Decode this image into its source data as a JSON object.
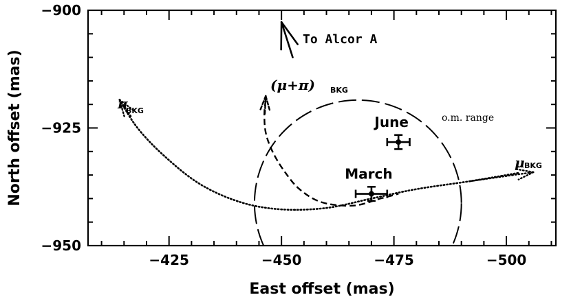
{
  "chart_data": {
    "type": "scatter",
    "xlabel": "East offset (mas)",
    "ylabel": "North offset (mas)",
    "xlim": [
      -407,
      -511
    ],
    "ylim": [
      -950,
      -900
    ],
    "x_ticks": [
      -425,
      -450,
      -475,
      -500
    ],
    "y_ticks": [
      -900,
      -925,
      -950
    ],
    "x_tick_labels": [
      "−425",
      "−450",
      "−475",
      "−500"
    ],
    "y_tick_labels": [
      "−900",
      "−925",
      "−950"
    ],
    "points": [
      {
        "label": "March",
        "x": -470,
        "y": -939,
        "xerr": 3.5,
        "yerr": 1.5
      },
      {
        "label": "June",
        "x": -476,
        "y": -928,
        "xerr": 2.5,
        "yerr": 1.5
      }
    ],
    "annotations": {
      "alcor": "To Alcor A",
      "om_range": "o.m. range",
      "pi_sym": "π",
      "pi_sub": "BKG",
      "mu_sym": "μ",
      "mu_sub": "BKG",
      "mupi_sym": "(μ+π)",
      "mupi_sub": "BKG"
    },
    "om_range_circle": {
      "center": [
        -467,
        -941
      ],
      "radius": 23
    },
    "pi_bkg_path": [
      [
        -414,
        -919
      ],
      [
        -418,
        -925
      ],
      [
        -424,
        -931
      ],
      [
        -432,
        -937
      ],
      [
        -441,
        -940.8
      ],
      [
        -450,
        -942.3
      ],
      [
        -460,
        -942
      ],
      [
        -470,
        -940
      ],
      [
        -480,
        -938
      ],
      [
        -492,
        -936.3
      ],
      [
        -503,
        -934.5
      ]
    ],
    "mupi_bkg_path": [
      [
        -446.5,
        -919
      ],
      [
        -446.2,
        -922
      ],
      [
        -446.5,
        -926
      ],
      [
        -448,
        -930
      ],
      [
        -450.5,
        -934
      ],
      [
        -454,
        -938
      ],
      [
        -459,
        -940.8
      ],
      [
        -466,
        -941.5
      ],
      [
        -472,
        -940
      ],
      [
        -476,
        -939
      ]
    ],
    "alcor_arrow": {
      "from": [
        -452.5,
        -910
      ],
      "to": [
        -450,
        -902.5
      ]
    },
    "mu_arrow": {
      "from": [
        -492,
        -936.3
      ],
      "to": [
        -506,
        -934.4
      ]
    },
    "pi_arrow": {
      "from": [
        -416.5,
        -922.5
      ],
      "to": [
        -414,
        -919
      ]
    },
    "mupi_arrow": {
      "from": [
        -446.3,
        -922
      ],
      "to": [
        -446.5,
        -918.2
      ]
    }
  }
}
